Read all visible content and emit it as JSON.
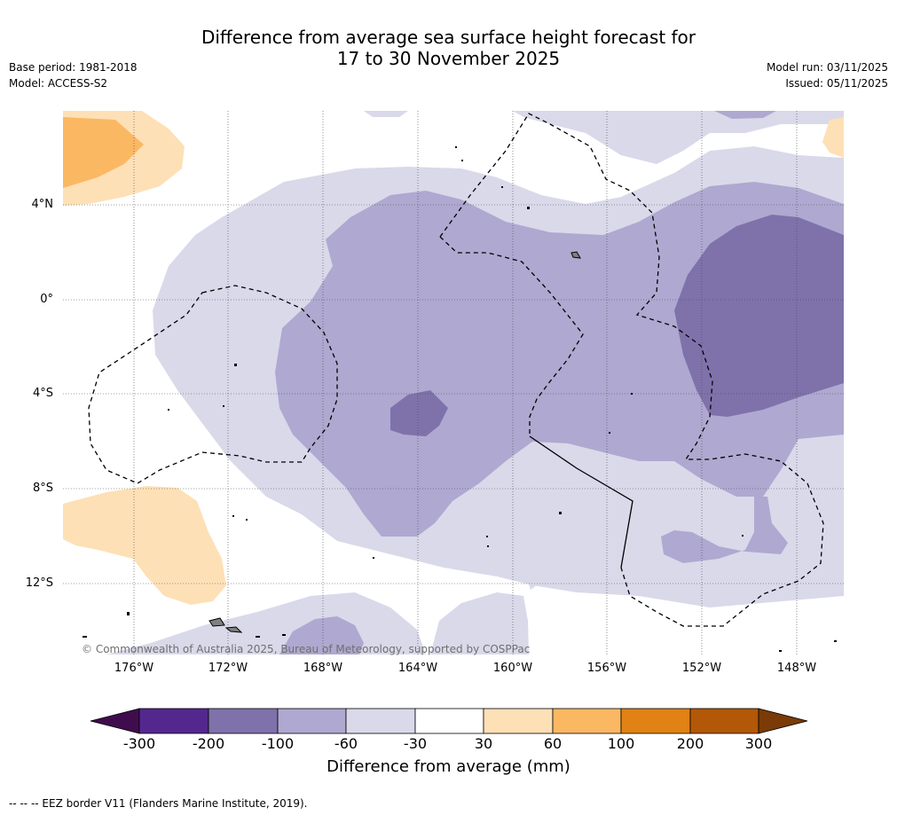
{
  "title": {
    "line1": "Difference from average sea surface height forecast for",
    "line2": "17 to 30 November 2025"
  },
  "meta_left": {
    "base_period": "Base period: 1981-2018",
    "model": "Model: ACCESS-S2"
  },
  "meta_right": {
    "model_run": "Model run: 03/11/2025",
    "issued": "Issued: 05/11/2025"
  },
  "latitude_labels": [
    "4°N",
    "0°",
    "4°S",
    "8°S",
    "12°S"
  ],
  "longitude_labels": [
    "176°W",
    "172°W",
    "168°W",
    "164°W",
    "160°W",
    "156°W",
    "152°W",
    "148°W"
  ],
  "copyright": "© Commonwealth of Australia 2025, Bureau of Meteorology, supported by COSPPac",
  "colorbar": {
    "title": "Difference from average (mm)",
    "ticks": [
      "-300",
      "-200",
      "-100",
      "-60",
      "-30",
      "30",
      "60",
      "100",
      "200",
      "300"
    ],
    "colors": [
      "#3f0d4d",
      "#54278f",
      "#7f72ab",
      "#afa8d0",
      "#d9d9ea",
      "#ffffff",
      "#fee0b6",
      "#fbb863",
      "#e08214",
      "#b35806",
      "#7a3b06"
    ]
  },
  "footnote": "--  --  -- EEZ border V11 (Flanders Marine Institute, 2019)."
}
